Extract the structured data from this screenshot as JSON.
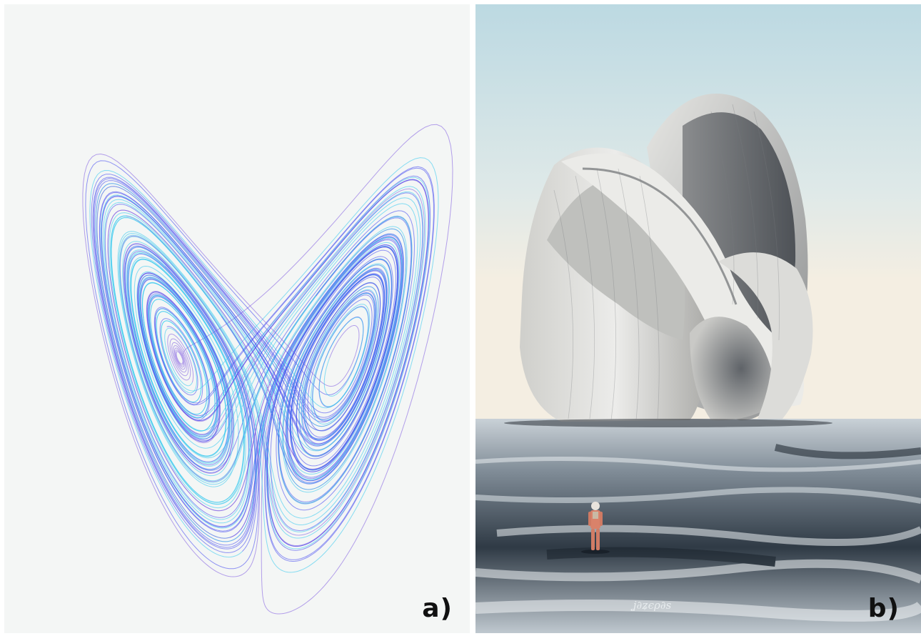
{
  "panels": [
    {
      "id": "a",
      "label": "a)",
      "subject": "lorenz-attractor",
      "colors": {
        "background": "#f4f6f5",
        "primary": "#3b3ff0",
        "secondary": "#29c7ee",
        "tertiary": "#7b55e0"
      }
    },
    {
      "id": "b",
      "label": "b)",
      "subject": "sculpture-over-water-with-astronaut",
      "signature_text": "ʝ∂ʑєρ∂s",
      "colors": {
        "sky_top": "#c7e0e7",
        "sky_bottom": "#f3ecdf",
        "stone": "#d6d6d3",
        "water": "#1d2833",
        "suit": "#d9826a"
      }
    }
  ]
}
